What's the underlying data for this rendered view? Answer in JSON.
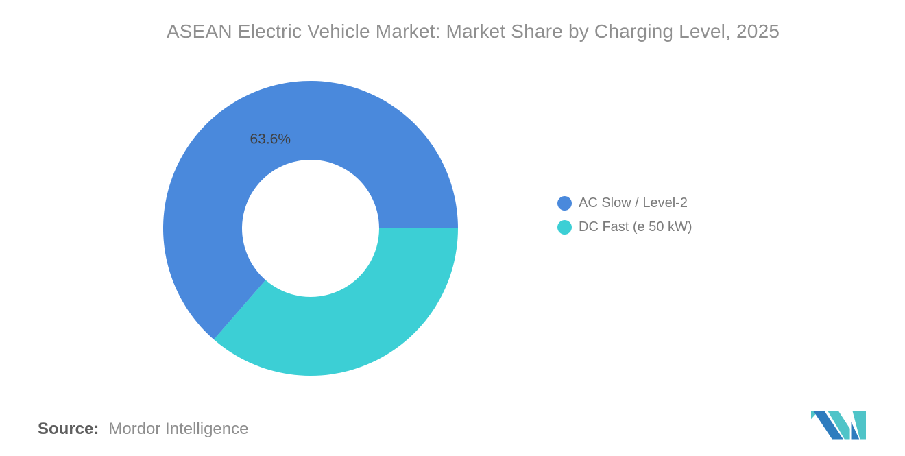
{
  "title": "ASEAN Electric Vehicle Market: Market Share by Charging Level, 2025",
  "legend": [
    {
      "label": "AC Slow / Level-2",
      "color": "#4A89DC"
    },
    {
      "label": "DC Fast (e 50 kW)",
      "color": "#3CCFD5"
    }
  ],
  "source": {
    "label": "Source:",
    "value": "Mordor Intelligence"
  },
  "logo": {
    "name": "mordor-intelligence-logo",
    "blue": "#2E7CBE",
    "teal": "#4FC4C8"
  },
  "chart_data": {
    "type": "pie",
    "subtype": "donut",
    "title": "ASEAN Electric Vehicle Market: Market Share by Charging Level, 2025",
    "categories": [
      "AC Slow / Level-2",
      "DC Fast (e 50 kW)"
    ],
    "values": [
      63.6,
      36.4
    ],
    "units": "%",
    "data_labels": [
      "63.6%",
      ""
    ],
    "colors": [
      "#4A89DC",
      "#3CCFD5"
    ],
    "start_angle_deg": 90,
    "direction": "clockwise",
    "render_order": [
      1,
      0
    ],
    "inner_radius_ratio": 0.465,
    "legend_position": "right",
    "background": "#FFFFFF"
  }
}
